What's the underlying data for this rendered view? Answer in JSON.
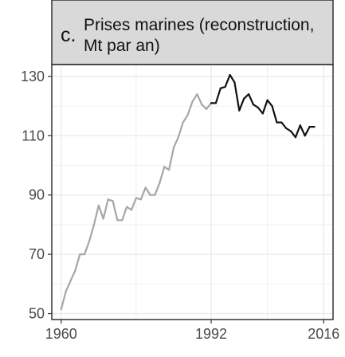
{
  "chart_data": {
    "type": "line",
    "panel_letter": "c.",
    "title_lines": [
      "Prises marines (reconstruction,",
      "Mt par an)"
    ],
    "xlabel": "",
    "ylabel": "",
    "xlim": [
      1958,
      2018
    ],
    "ylim": [
      48,
      134
    ],
    "x_ticks": [
      1960,
      1992,
      2016
    ],
    "y_ticks": [
      50,
      70,
      90,
      110,
      130
    ],
    "grid": true,
    "legend": "none",
    "colors": {
      "strip_fill": "#d9d9d9",
      "grid": "#ebebeb",
      "axis": "#333333",
      "series_early": "#a6a6a6",
      "series_late": "#111111"
    },
    "series": [
      {
        "color": "#a6a6a6",
        "x": [
          1960,
          1961,
          1962,
          1963,
          1964,
          1965,
          1966,
          1967,
          1968,
          1969,
          1970,
          1971,
          1972,
          1973,
          1974,
          1975,
          1976,
          1977,
          1978,
          1979,
          1980,
          1981,
          1982,
          1983,
          1984,
          1985,
          1986,
          1987,
          1988,
          1989,
          1990,
          1991,
          1992
        ],
        "values": [
          51.5,
          57.5,
          61.0,
          64.5,
          70.0,
          70.0,
          74.5,
          80.0,
          86.5,
          82.0,
          88.5,
          88.0,
          81.5,
          81.5,
          86.0,
          85.0,
          89.0,
          88.5,
          92.5,
          90.0,
          90.0,
          94.0,
          99.5,
          98.5,
          106.0,
          109.5,
          114.5,
          117.0,
          121.5,
          124.0,
          120.5,
          119.0,
          121.0
        ]
      },
      {
        "color": "#111111",
        "x": [
          1992,
          1993,
          1994,
          1995,
          1996,
          1997,
          1998,
          1999,
          2000,
          2001,
          2002,
          2003,
          2004,
          2005,
          2006,
          2007,
          2008,
          2009,
          2010,
          2011,
          2012,
          2013,
          2014
        ],
        "values": [
          121.0,
          121.0,
          126.0,
          126.5,
          130.5,
          128.0,
          118.5,
          122.5,
          124.0,
          120.5,
          119.5,
          117.5,
          122.0,
          120.0,
          114.5,
          114.5,
          112.5,
          111.5,
          109.5,
          113.5,
          110.0,
          113.0,
          113.0
        ]
      }
    ]
  }
}
